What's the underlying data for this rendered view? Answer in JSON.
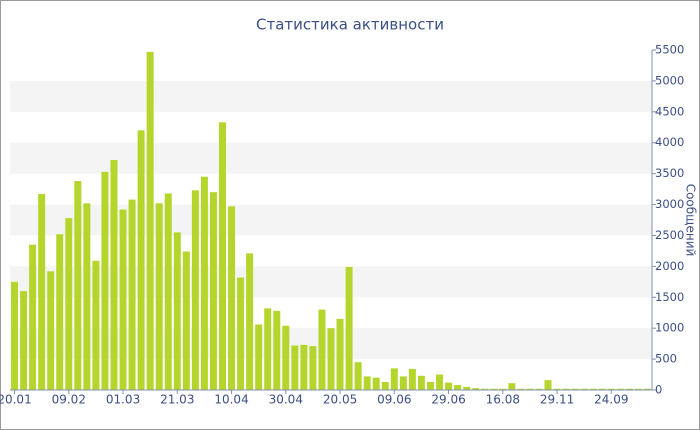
{
  "chart_data": {
    "type": "bar",
    "title": "Статистика активности",
    "y_label": "Сообщений",
    "categories": [
      "20.01",
      null,
      null,
      null,
      null,
      null,
      "09.02",
      null,
      null,
      null,
      null,
      null,
      "01.03",
      null,
      null,
      null,
      null,
      null,
      "21.03",
      null,
      null,
      null,
      null,
      null,
      "10.04",
      null,
      null,
      null,
      null,
      null,
      "30.04",
      null,
      null,
      null,
      null,
      null,
      "20.05",
      null,
      null,
      null,
      null,
      null,
      "09.06",
      null,
      null,
      null,
      null,
      null,
      "29.06",
      null,
      null,
      null,
      null,
      null,
      "16.08",
      null,
      null,
      null,
      null,
      null,
      "29.11",
      null,
      null,
      null,
      null,
      null,
      "24.09",
      null,
      null,
      null,
      null
    ],
    "values": [
      1750,
      1600,
      2350,
      3170,
      1920,
      2520,
      2780,
      3380,
      3020,
      2090,
      3530,
      3720,
      2920,
      3080,
      4200,
      5470,
      3020,
      3180,
      2550,
      2240,
      3230,
      3450,
      3200,
      4330,
      2970,
      1820,
      2210,
      1060,
      1320,
      1280,
      1040,
      720,
      730,
      710,
      1300,
      1000,
      1150,
      1990,
      450,
      220,
      200,
      130,
      350,
      220,
      340,
      230,
      130,
      250,
      120,
      80,
      50,
      30,
      20,
      20,
      20,
      110,
      20,
      20,
      20,
      160,
      20,
      20,
      20,
      20,
      20,
      20,
      20,
      20,
      20,
      20,
      20
    ],
    "color": "#b4d62c",
    "ylim": [
      0,
      5500
    ],
    "yticks": [
      0,
      500,
      1000,
      1500,
      2000,
      2500,
      3000,
      3500,
      4000,
      4500,
      5000,
      5500
    ],
    "grid": true
  }
}
